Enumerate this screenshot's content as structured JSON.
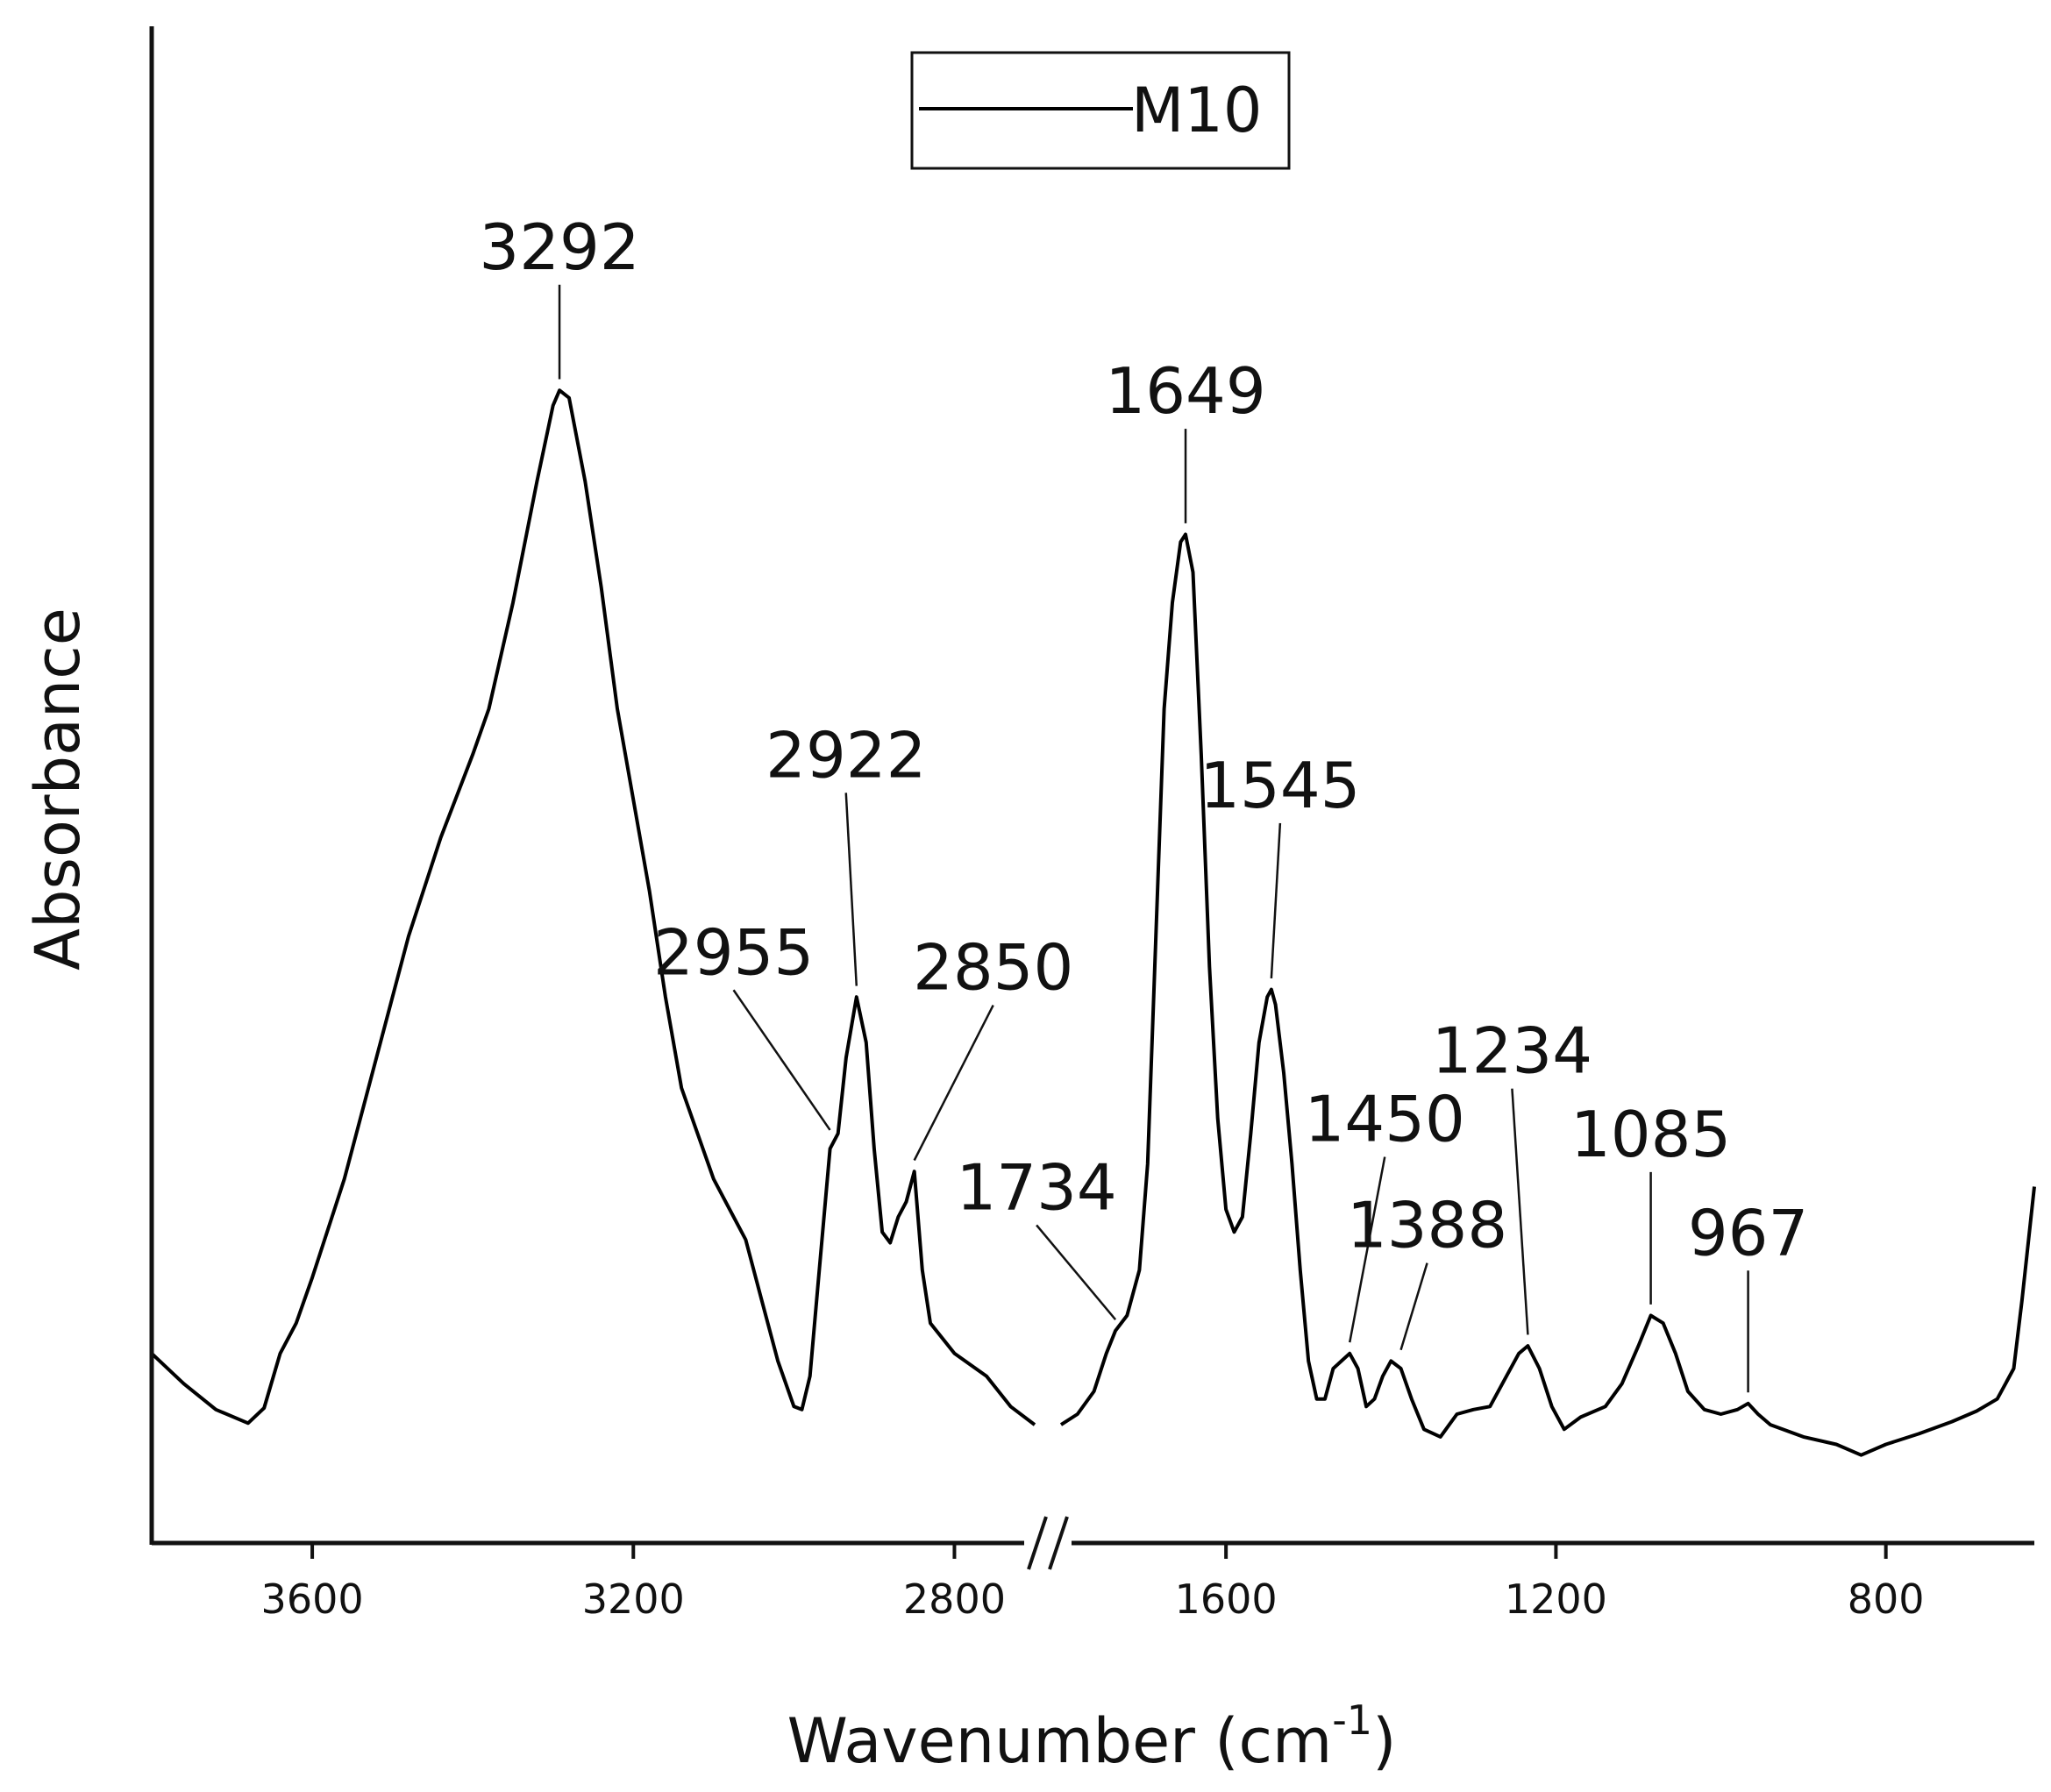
{
  "chart_data": {
    "type": "line",
    "title": "",
    "xlabel": "Wavenumber (cm",
    "xlabel_superscript": "-1",
    "xlabel_suffix": ")",
    "ylabel": "Absorbance",
    "x_reversed": true,
    "axis_break": true,
    "segments": [
      {
        "xlim": [
          3800,
          2700
        ],
        "ticks": [
          3600,
          3200,
          2800
        ]
      },
      {
        "xlim": [
          1800,
          620
        ],
        "ticks": [
          1600,
          1200,
          800
        ]
      }
    ],
    "ylim": [
      0,
      100
    ],
    "y_ticks_shown": false,
    "grid": false,
    "legend": {
      "position": "top-center",
      "entries": [
        "M10"
      ]
    },
    "series": [
      {
        "name": "M10",
        "color": "#000000",
        "segments": [
          [
            [
              3800,
              12.5
            ],
            [
              3760,
              10.5
            ],
            [
              3720,
              8.8
            ],
            [
              3680,
              7.9
            ],
            [
              3660,
              8.9
            ],
            [
              3640,
              12.5
            ],
            [
              3620,
              14.5
            ],
            [
              3600,
              17.5
            ],
            [
              3560,
              24.0
            ],
            [
              3520,
              32.0
            ],
            [
              3480,
              40.0
            ],
            [
              3440,
              46.5
            ],
            [
              3400,
              52.0
            ],
            [
              3380,
              55.0
            ],
            [
              3350,
              62.0
            ],
            [
              3320,
              70.0
            ],
            [
              3300,
              75.0
            ],
            [
              3292,
              76.0
            ],
            [
              3280,
              75.5
            ],
            [
              3260,
              70.0
            ],
            [
              3240,
              63.0
            ],
            [
              3220,
              55.0
            ],
            [
              3200,
              49.0
            ],
            [
              3180,
              43.0
            ],
            [
              3160,
              36.0
            ],
            [
              3140,
              30.0
            ],
            [
              3120,
              27.0
            ],
            [
              3100,
              24.0
            ],
            [
              3080,
              22.0
            ],
            [
              3060,
              20.0
            ],
            [
              3040,
              16.0
            ],
            [
              3020,
              12.0
            ],
            [
              3000,
              9.0
            ],
            [
              2990,
              8.8
            ],
            [
              2980,
              11.0
            ],
            [
              2970,
              17.0
            ],
            [
              2955,
              26.0
            ],
            [
              2945,
              27.0
            ],
            [
              2935,
              32.0
            ],
            [
              2922,
              36.0
            ],
            [
              2910,
              33.0
            ],
            [
              2900,
              26.0
            ],
            [
              2890,
              20.5
            ],
            [
              2880,
              19.8
            ],
            [
              2870,
              21.5
            ],
            [
              2860,
              22.5
            ],
            [
              2850,
              24.5
            ],
            [
              2840,
              18.0
            ],
            [
              2830,
              14.5
            ],
            [
              2800,
              12.5
            ],
            [
              2760,
              11.0
            ],
            [
              2730,
              9.0
            ],
            [
              2700,
              7.8
            ]
          ],
          [
            [
              1800,
              7.8
            ],
            [
              1780,
              8.5
            ],
            [
              1760,
              10.0
            ],
            [
              1745,
              12.5
            ],
            [
              1734,
              14.0
            ],
            [
              1720,
              15.0
            ],
            [
              1705,
              18.0
            ],
            [
              1695,
              25.0
            ],
            [
              1685,
              40.0
            ],
            [
              1675,
              55.0
            ],
            [
              1665,
              62.0
            ],
            [
              1655,
              66.0
            ],
            [
              1649,
              66.5
            ],
            [
              1640,
              64.0
            ],
            [
              1630,
              52.0
            ],
            [
              1620,
              38.0
            ],
            [
              1610,
              28.0
            ],
            [
              1600,
              22.0
            ],
            [
              1590,
              20.5
            ],
            [
              1580,
              21.5
            ],
            [
              1570,
              27.0
            ],
            [
              1560,
              33.0
            ],
            [
              1550,
              36.0
            ],
            [
              1545,
              36.5
            ],
            [
              1540,
              35.5
            ],
            [
              1530,
              31.0
            ],
            [
              1520,
              25.0
            ],
            [
              1510,
              18.0
            ],
            [
              1500,
              12.0
            ],
            [
              1490,
              9.5
            ],
            [
              1480,
              9.5
            ],
            [
              1470,
              11.5
            ],
            [
              1460,
              12.0
            ],
            [
              1450,
              12.5
            ],
            [
              1440,
              11.5
            ],
            [
              1430,
              9.0
            ],
            [
              1420,
              9.5
            ],
            [
              1410,
              11.0
            ],
            [
              1400,
              12.0
            ],
            [
              1388,
              11.5
            ],
            [
              1375,
              9.5
            ],
            [
              1360,
              7.5
            ],
            [
              1340,
              7.0
            ],
            [
              1320,
              8.5
            ],
            [
              1300,
              8.8
            ],
            [
              1280,
              9.0
            ],
            [
              1260,
              11.0
            ],
            [
              1245,
              12.5
            ],
            [
              1234,
              13.0
            ],
            [
              1220,
              11.5
            ],
            [
              1205,
              9.0
            ],
            [
              1190,
              7.5
            ],
            [
              1170,
              8.3
            ],
            [
              1140,
              9.0
            ],
            [
              1120,
              10.5
            ],
            [
              1100,
              13.0
            ],
            [
              1085,
              15.0
            ],
            [
              1070,
              14.5
            ],
            [
              1055,
              12.5
            ],
            [
              1040,
              10.0
            ],
            [
              1020,
              8.8
            ],
            [
              1000,
              8.5
            ],
            [
              980,
              8.8
            ],
            [
              967,
              9.2
            ],
            [
              955,
              8.5
            ],
            [
              940,
              7.8
            ],
            [
              900,
              7.0
            ],
            [
              860,
              6.5
            ],
            [
              830,
              5.8
            ],
            [
              800,
              6.5
            ],
            [
              760,
              7.2
            ],
            [
              720,
              8.0
            ],
            [
              690,
              8.7
            ],
            [
              665,
              9.5
            ],
            [
              645,
              11.5
            ],
            [
              635,
              16.0
            ],
            [
              625,
              21.0
            ],
            [
              620,
              23.5
            ]
          ]
        ]
      }
    ],
    "annotations": [
      {
        "label": "3292",
        "x": 3292,
        "segment": 0,
        "tip_y": 76.5,
        "label_y": 84.0,
        "label_dx": 0
      },
      {
        "label": "2955",
        "x": 2955,
        "segment": 0,
        "tip_y": 27.0,
        "label_y": 37.5,
        "label_dx": -110
      },
      {
        "label": "2922",
        "x": 2922,
        "segment": 0,
        "tip_y": 36.5,
        "label_y": 50.5,
        "label_dx": -12
      },
      {
        "label": "2850",
        "x": 2850,
        "segment": 0,
        "tip_y": 25.0,
        "label_y": 36.5,
        "label_dx": 90
      },
      {
        "label": "1734",
        "x": 1734,
        "segment": 1,
        "tip_y": 14.5,
        "label_y": 22.0,
        "label_dx": -90
      },
      {
        "label": "1649",
        "x": 1649,
        "segment": 1,
        "tip_y": 67.0,
        "label_y": 74.5,
        "label_dx": 0
      },
      {
        "label": "1545",
        "x": 1545,
        "segment": 1,
        "tip_y": 37.0,
        "label_y": 48.5,
        "label_dx": 10
      },
      {
        "label": "1450",
        "x": 1450,
        "segment": 1,
        "tip_y": 13.0,
        "label_y": 26.5,
        "label_dx": 40
      },
      {
        "label": "1388",
        "x": 1388,
        "segment": 1,
        "tip_y": 12.5,
        "label_y": 19.5,
        "label_dx": 30
      },
      {
        "label": "1234",
        "x": 1234,
        "segment": 1,
        "tip_y": 13.5,
        "label_y": 31.0,
        "label_dx": -18
      },
      {
        "label": "1085",
        "x": 1085,
        "segment": 1,
        "tip_y": 15.5,
        "label_y": 25.5,
        "label_dx": 0
      },
      {
        "label": "967",
        "x": 967,
        "segment": 1,
        "tip_y": 9.7,
        "label_y": 19.0,
        "label_dx": 0
      }
    ]
  }
}
